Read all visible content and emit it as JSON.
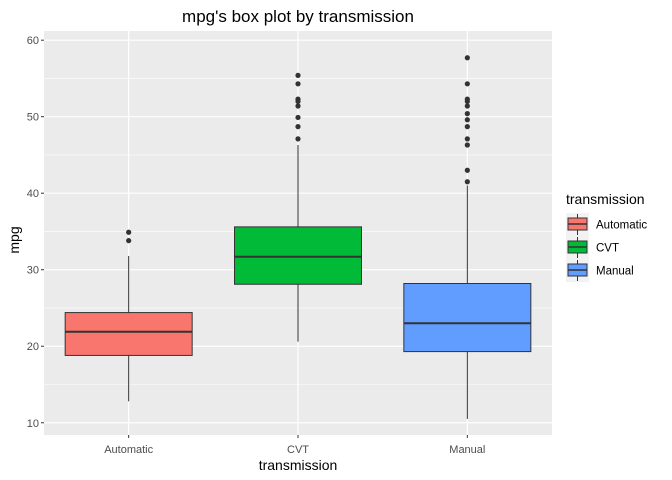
{
  "chart_data": {
    "type": "box",
    "title": "mpg's box plot by transmission",
    "xlabel": "transmission",
    "ylabel": "mpg",
    "ylim": [
      8.4,
      61.2
    ],
    "yticks": [
      10,
      20,
      30,
      40,
      50,
      60
    ],
    "grid": true,
    "legend": {
      "title": "transmission",
      "position": "right"
    },
    "series": [
      {
        "name": "Automatic",
        "color": "#F8766D",
        "min": 12.8,
        "q1": 18.8,
        "median": 21.9,
        "q3": 24.4,
        "max": 31.8,
        "outliers": [
          33.8,
          34.9
        ]
      },
      {
        "name": "CVT",
        "color": "#00BA38",
        "min": 20.6,
        "q1": 28.1,
        "median": 31.7,
        "q3": 35.6,
        "max": 46.3,
        "outliers": [
          47.1,
          48.7,
          49.9,
          51.4,
          52.0,
          52.3,
          54.3,
          55.4
        ]
      },
      {
        "name": "Manual",
        "color": "#619CFF",
        "min": 10.5,
        "q1": 19.3,
        "median": 23.0,
        "q3": 28.2,
        "max": 41.0,
        "outliers": [
          41.5,
          43.0,
          46.3,
          47.1,
          48.7,
          49.6,
          50.4,
          51.4,
          52.0,
          52.3,
          54.3,
          57.7
        ]
      }
    ]
  }
}
